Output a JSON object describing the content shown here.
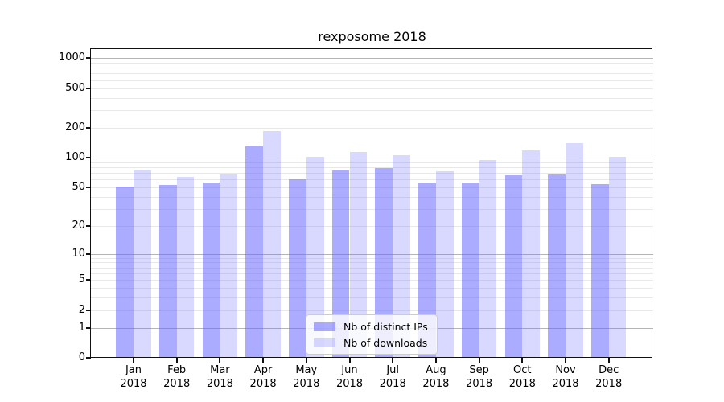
{
  "figure": {
    "background": "#ffffff",
    "text_color": "#000000",
    "spine_color": "#111111"
  },
  "chart_data": {
    "type": "bar",
    "title": "rexposome 2018",
    "categories": [
      "Jan",
      "Feb",
      "Mar",
      "Apr",
      "May",
      "Jun",
      "Jul",
      "Aug",
      "Sep",
      "Oct",
      "Nov",
      "Dec"
    ],
    "year": "2018",
    "series": [
      {
        "name": "Nb of distinct IPs",
        "color": "#6666ff",
        "alpha": 0.55,
        "values": [
          51,
          53,
          56,
          130,
          60,
          74,
          78,
          55,
          56,
          66,
          68,
          54
        ]
      },
      {
        "name": "Nb of downloads",
        "color": "#6666ff",
        "alpha": 0.25,
        "values": [
          74,
          64,
          67,
          186,
          102,
          113,
          105,
          73,
          94,
          118,
          140,
          102
        ]
      }
    ],
    "yscale": "log1p",
    "y_ticks": [
      0,
      1,
      2,
      5,
      10,
      20,
      50,
      100,
      200,
      500,
      1000
    ],
    "ylim": [
      0,
      1230
    ],
    "xlabel": "",
    "ylabel": "",
    "grid": {
      "major_color": "#b4b4b4",
      "minor_color": "#e8e8e8",
      "minor_mantissas": [
        2,
        3,
        4,
        5,
        6,
        7,
        8,
        9
      ]
    },
    "legend_position": "lower-center"
  }
}
